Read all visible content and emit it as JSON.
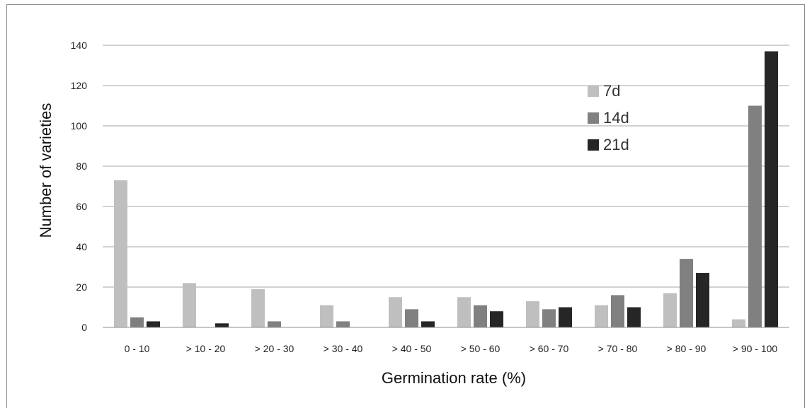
{
  "chart_data": {
    "type": "bar",
    "xlabel": "Germination rate (%)",
    "ylabel": "Number of varieties",
    "categories": [
      "0 - 10",
      "> 10 - 20",
      "> 20 - 30",
      "> 30 - 40",
      "> 40 - 50",
      "> 50 - 60",
      "> 60 - 70",
      "> 70 - 80",
      "> 80 - 90",
      "> 90 - 100"
    ],
    "series": [
      {
        "name": "7d",
        "color": "#bfbfbf",
        "values": [
          73,
          22,
          19,
          11,
          15,
          15,
          13,
          11,
          17,
          4
        ]
      },
      {
        "name": "14d",
        "color": "#808080",
        "values": [
          5,
          0,
          3,
          3,
          9,
          11,
          9,
          16,
          34,
          110
        ]
      },
      {
        "name": "21d",
        "color": "#262626",
        "values": [
          3,
          2,
          0,
          0,
          3,
          8,
          10,
          10,
          27,
          137
        ]
      }
    ],
    "ylim": [
      0,
      140
    ],
    "yticks": [
      0,
      20,
      40,
      60,
      80,
      100,
      120,
      140
    ],
    "grid": true,
    "legend_position": "top-right"
  }
}
